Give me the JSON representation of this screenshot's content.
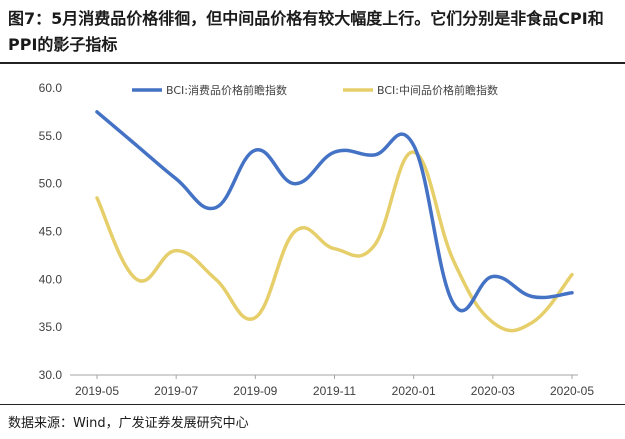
{
  "title": "图7：5月消费品价格徘徊，但中间品价格有较大幅度上行。它们分别是非食品CPI和PPI的影子指标",
  "source": "数据来源：Wind，广发证券发展研究中心",
  "chart_data": {
    "type": "line",
    "x": [
      "2019-05",
      "2019-06",
      "2019-07",
      "2019-08",
      "2019-09",
      "2019-10",
      "2019-11",
      "2019-12",
      "2020-01",
      "2020-02",
      "2020-03",
      "2020-04",
      "2020-05"
    ],
    "xticks": [
      "2019-05",
      "2019-07",
      "2019-09",
      "2019-11",
      "2020-01",
      "2020-03",
      "2020-05"
    ],
    "yticks": [
      "30.0",
      "35.0",
      "40.0",
      "45.0",
      "50.0",
      "55.0",
      "60.0"
    ],
    "ylim": [
      30,
      60
    ],
    "grid": false,
    "legend_position": "top",
    "series": [
      {
        "name": "BCI:消费品价格前瞻指数",
        "color": "#4472C4",
        "values": [
          57.5,
          54.0,
          50.5,
          47.5,
          53.5,
          50.0,
          53.3,
          53.0,
          54.0,
          37.5,
          40.3,
          38.2,
          38.6
        ]
      },
      {
        "name": "BCI:中间品价格前瞻指数",
        "color": "#E6CF6B",
        "values": [
          48.5,
          40.0,
          43.0,
          40.0,
          36.0,
          45.0,
          43.2,
          43.5,
          53.3,
          42.0,
          35.5,
          35.5,
          40.5
        ]
      }
    ]
  }
}
